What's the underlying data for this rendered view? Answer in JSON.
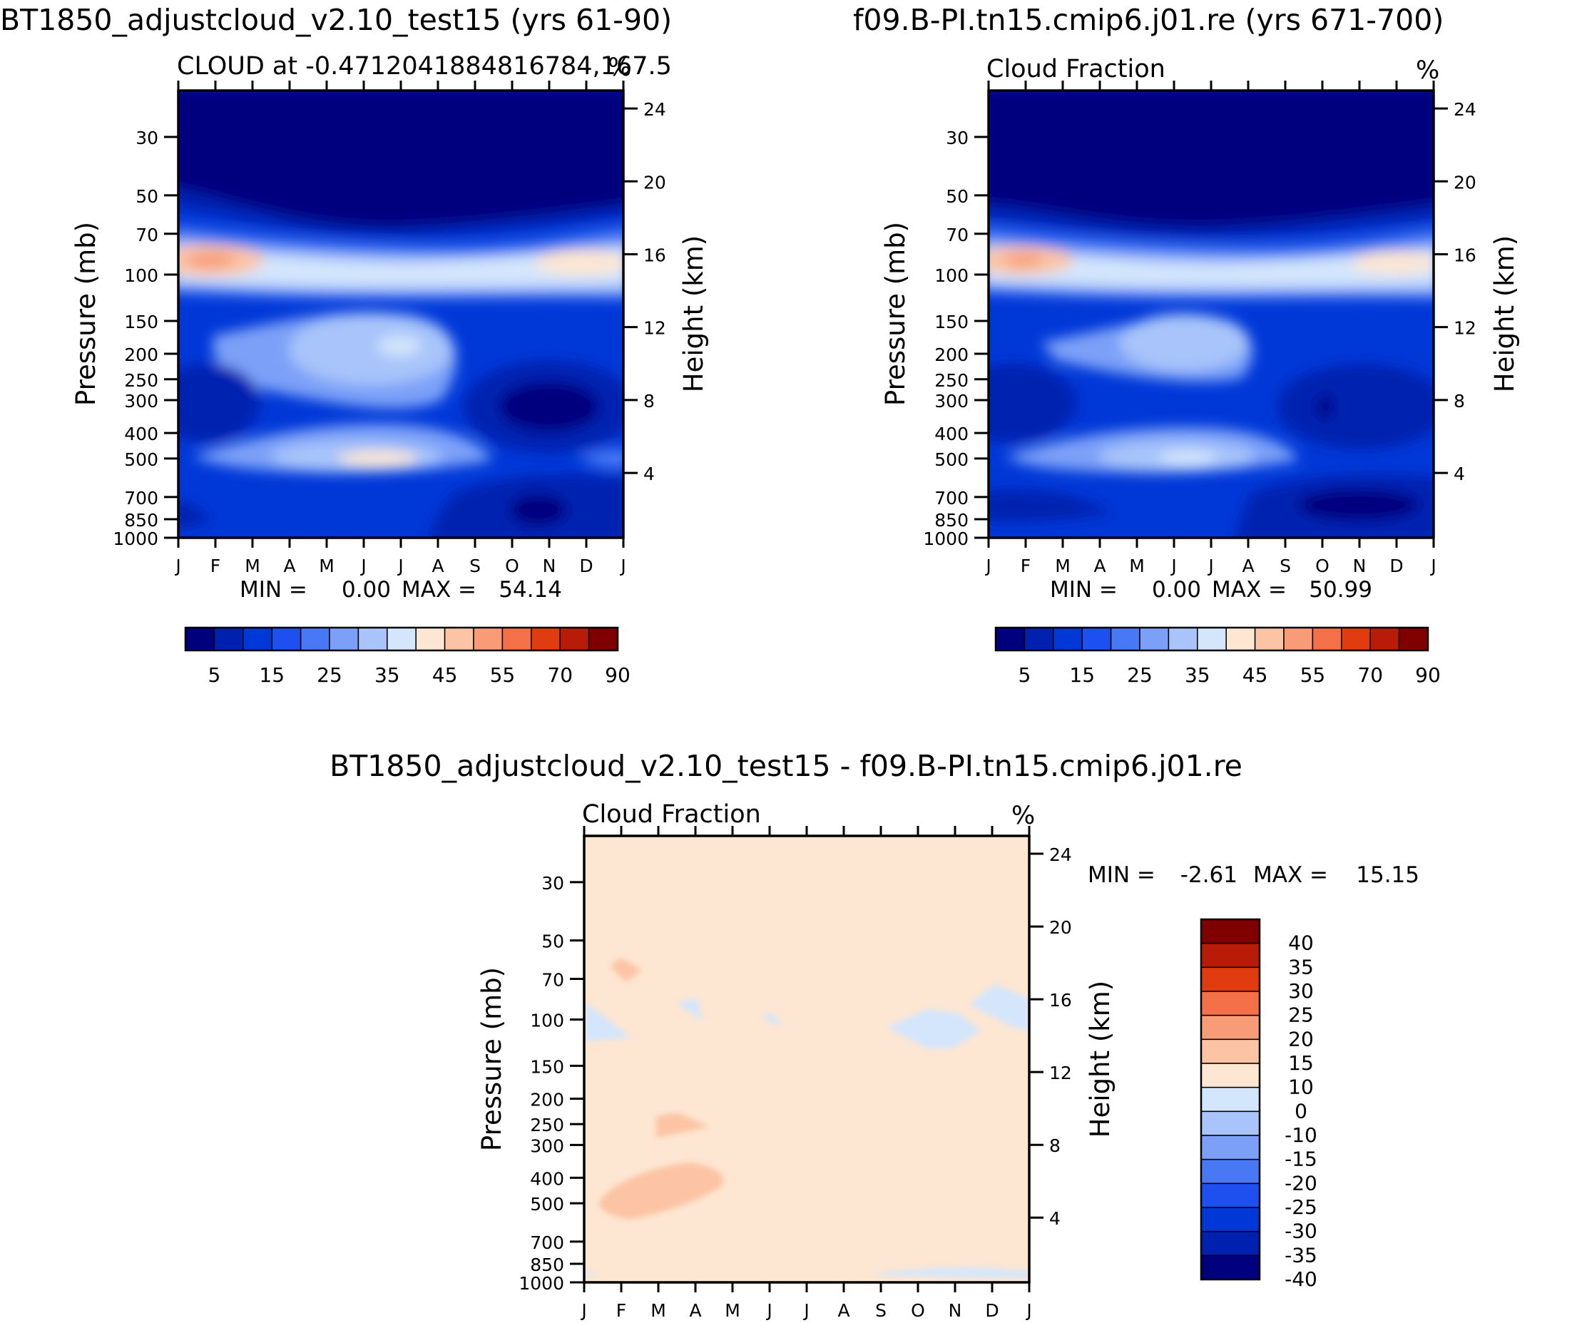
{
  "chart_data": [
    {
      "type": "contour",
      "title": "BT1850_adjustcloud_v2.10_test15 (yrs 61-90)",
      "subtitle": "CLOUD at -0.4712041884816784,167.5",
      "units": "%",
      "x": {
        "ticks": [
          "J",
          "F",
          "M",
          "A",
          "M",
          "J",
          "J",
          "A",
          "S",
          "O",
          "N",
          "D",
          "J"
        ]
      },
      "y_left": {
        "label": "Pressure (mb)",
        "ticks": [
          30,
          50,
          70,
          100,
          150,
          200,
          250,
          300,
          400,
          500,
          700,
          850,
          1000
        ]
      },
      "y_right": {
        "label": "Height (km)",
        "ticks": [
          24,
          20,
          16,
          12,
          8,
          4
        ]
      },
      "stats": {
        "min_label": "MIN =",
        "min_value": "0.00",
        "max_label": "MAX =",
        "max_value": "54.14"
      },
      "colorbar": {
        "colors": [
          "#00007f",
          "#0020b0",
          "#0038d8",
          "#1e50f0",
          "#4878f4",
          "#7ca0f8",
          "#a8c4fa",
          "#d4e6fc",
          "#fde6d2",
          "#fcc4a4",
          "#f89c78",
          "#f47048",
          "#e03c10",
          "#b81c08",
          "#800000"
        ],
        "labels": [
          "5",
          "15",
          "25",
          "35",
          "45",
          "55",
          "70",
          "90"
        ]
      }
    },
    {
      "type": "contour",
      "title": "f09.B-PI.tn15.cmip6.j01.re (yrs 671-700)",
      "subtitle": "Cloud Fraction",
      "units": "%",
      "x": {
        "ticks": [
          "J",
          "F",
          "M",
          "A",
          "M",
          "J",
          "J",
          "A",
          "S",
          "O",
          "N",
          "D",
          "J"
        ]
      },
      "y_left": {
        "label": "Pressure (mb)",
        "ticks": [
          30,
          50,
          70,
          100,
          150,
          200,
          250,
          300,
          400,
          500,
          700,
          850,
          1000
        ]
      },
      "y_right": {
        "label": "Height (km)",
        "ticks": [
          24,
          20,
          16,
          12,
          8,
          4
        ]
      },
      "stats": {
        "min_label": "MIN =",
        "min_value": "0.00",
        "max_label": "MAX =",
        "max_value": "50.99"
      },
      "colorbar": {
        "colors": [
          "#00007f",
          "#0020b0",
          "#0038d8",
          "#1e50f0",
          "#4878f4",
          "#7ca0f8",
          "#a8c4fa",
          "#d4e6fc",
          "#fde6d2",
          "#fcc4a4",
          "#f89c78",
          "#f47048",
          "#e03c10",
          "#b81c08",
          "#800000"
        ],
        "labels": [
          "5",
          "15",
          "25",
          "35",
          "45",
          "55",
          "70",
          "90"
        ]
      }
    },
    {
      "type": "contour",
      "title": "BT1850_adjustcloud_v2.10_test15 - f09.B-PI.tn15.cmip6.j01.re",
      "subtitle": "Cloud Fraction",
      "units": "%",
      "x": {
        "ticks": [
          "J",
          "F",
          "M",
          "A",
          "M",
          "J",
          "J",
          "A",
          "S",
          "O",
          "N",
          "D",
          "J"
        ]
      },
      "y_left": {
        "label": "Pressure (mb)",
        "ticks": [
          30,
          50,
          70,
          100,
          150,
          200,
          250,
          300,
          400,
          500,
          700,
          850,
          1000
        ]
      },
      "y_right": {
        "label": "Height (km)",
        "ticks": [
          24,
          20,
          16,
          12,
          8,
          4
        ]
      },
      "stats": {
        "min_label": "MIN =",
        "min_value": "-2.61",
        "max_label": "MAX =",
        "max_value": "15.15"
      },
      "colorbar": {
        "colors": [
          "#800000",
          "#b81c08",
          "#e03c10",
          "#f47048",
          "#f89c78",
          "#fcc4a4",
          "#fde6d2",
          "#d4e6fc",
          "#a8c4fa",
          "#7ca0f8",
          "#4878f4",
          "#1e50f0",
          "#0038d8",
          "#0020b0",
          "#00007f"
        ],
        "labels": [
          "40",
          "35",
          "30",
          "25",
          "20",
          "15",
          "10",
          "0",
          "-10",
          "-15",
          "-20",
          "-25",
          "-30",
          "-35",
          "-40"
        ]
      }
    }
  ]
}
